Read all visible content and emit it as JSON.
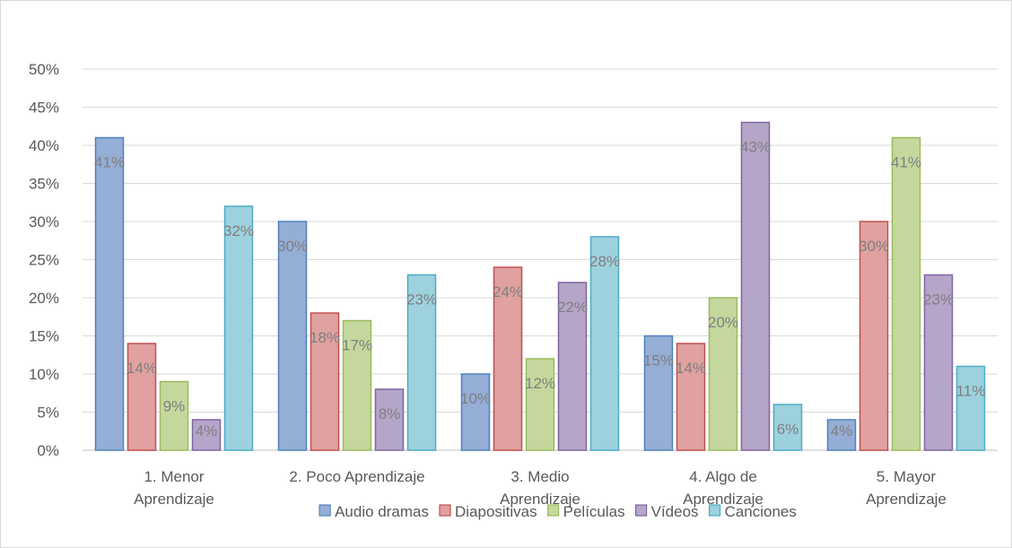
{
  "chart_data": {
    "type": "bar",
    "categories": [
      [
        "1. Menor",
        "Aprendizaje"
      ],
      [
        "2. Poco Aprendizaje"
      ],
      [
        "3. Medio",
        "Aprendizaje"
      ],
      [
        "4. Algo de",
        "Aprendizaje"
      ],
      [
        "5. Mayor",
        "Aprendizaje"
      ]
    ],
    "series": [
      {
        "name": "Audio dramas",
        "values": [
          41,
          30,
          10,
          15,
          4
        ],
        "fill": "#95aed6",
        "stroke": "#4f81bd"
      },
      {
        "name": "Diapositivas",
        "values": [
          14,
          18,
          24,
          14,
          30
        ],
        "fill": "#e0a1a0",
        "stroke": "#c0504d"
      },
      {
        "name": "Películas",
        "values": [
          9,
          17,
          12,
          20,
          41
        ],
        "fill": "#c4d89e",
        "stroke": "#9bbb59"
      },
      {
        "name": "Vídeos",
        "values": [
          4,
          8,
          22,
          43,
          23
        ],
        "fill": "#b5a5c9",
        "stroke": "#8064a2"
      },
      {
        "name": "Canciones",
        "values": [
          32,
          23,
          28,
          6,
          11
        ],
        "fill": "#9ed1de",
        "stroke": "#4bacc6"
      }
    ],
    "yticks": [
      "0%",
      "5%",
      "10%",
      "15%",
      "20%",
      "25%",
      "30%",
      "35%",
      "40%",
      "45%",
      "50%"
    ],
    "value_suffix": "%",
    "ylim": [
      0,
      50
    ],
    "grid": true,
    "legend": "bottom",
    "title": "",
    "xlabel": "",
    "ylabel": ""
  }
}
